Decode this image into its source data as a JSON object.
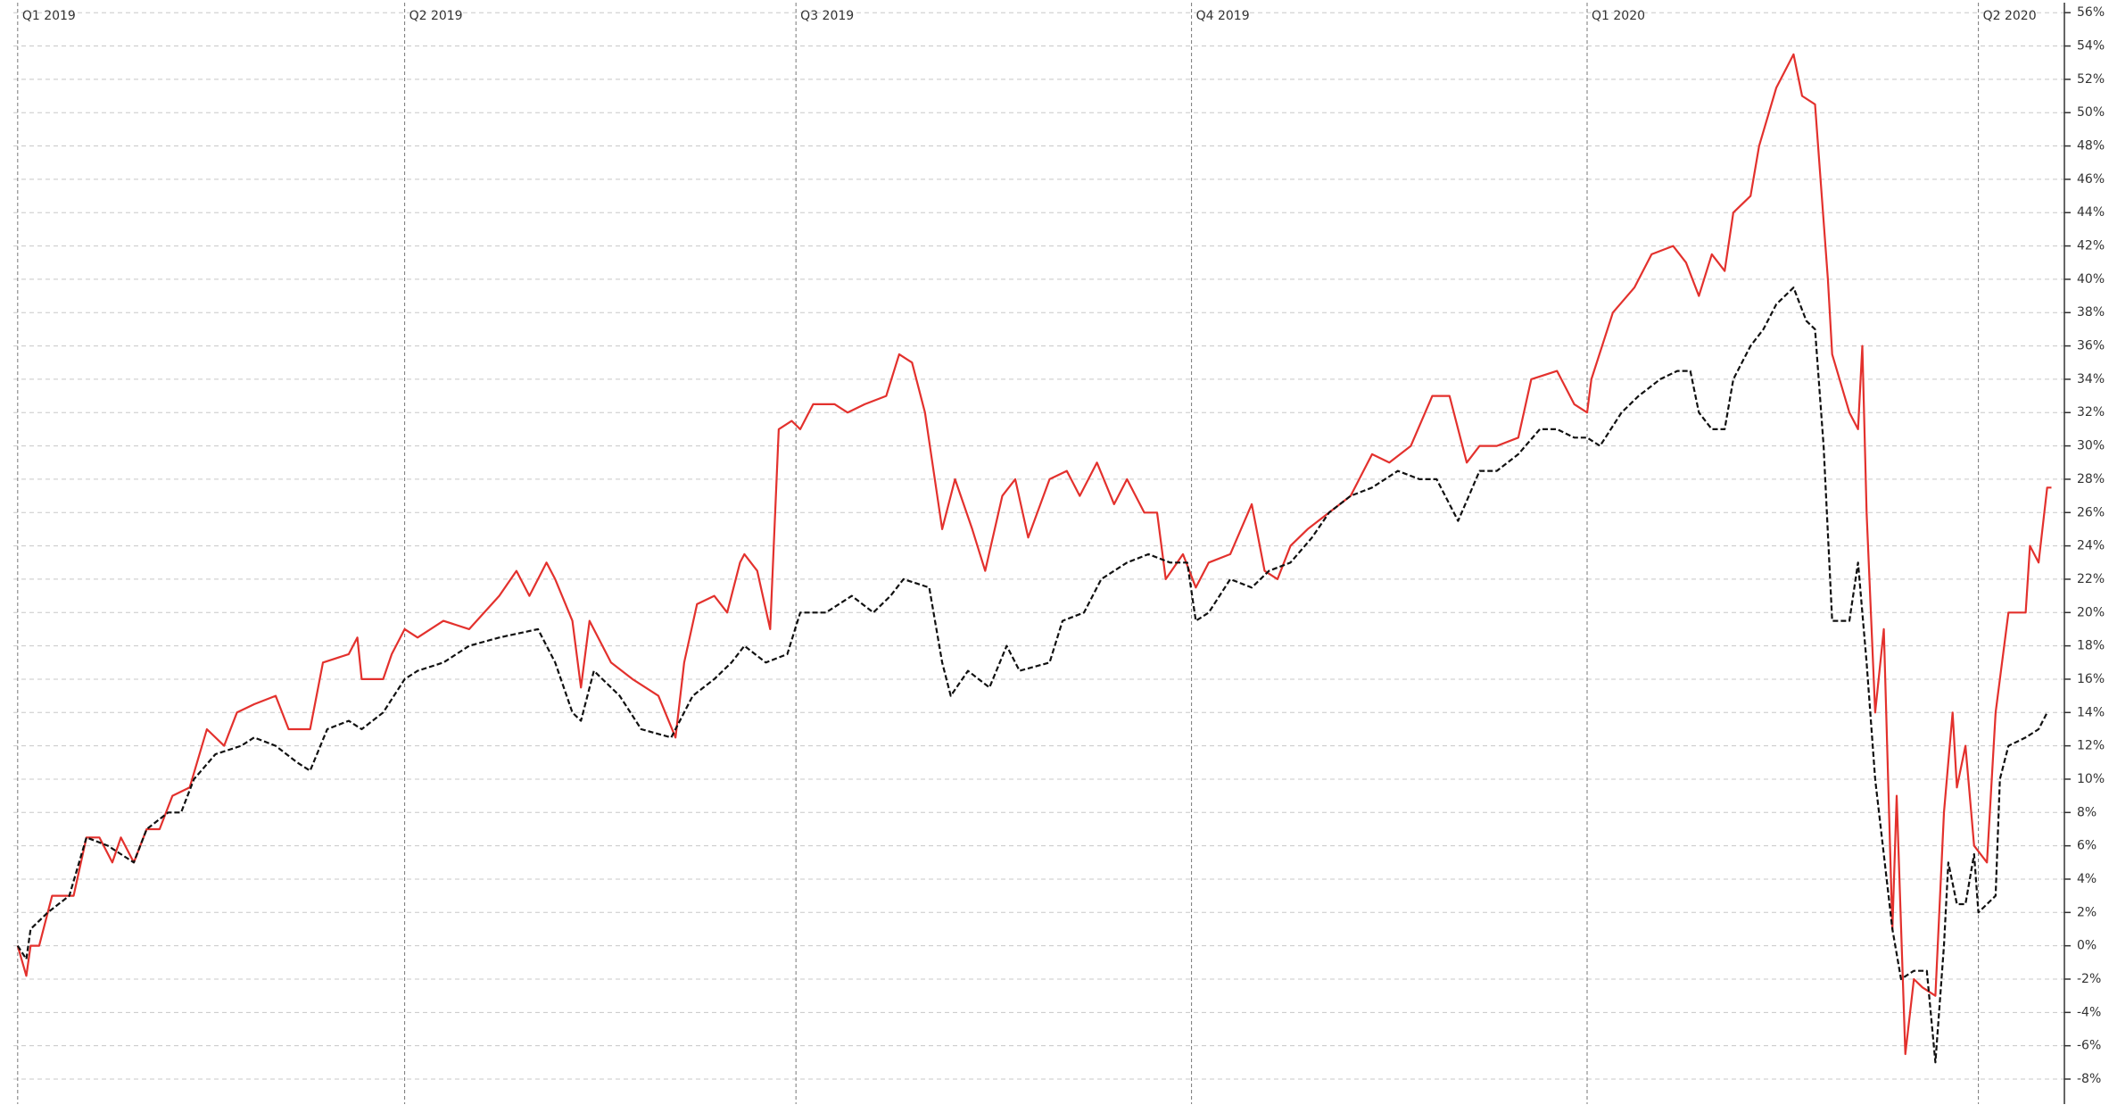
{
  "chart_data": {
    "type": "line",
    "xlim": [
      -1,
      476
    ],
    "xticks": [
      {
        "value": 0,
        "label": "Q1 2019"
      },
      {
        "value": 90,
        "label": "Q2 2019"
      },
      {
        "value": 181,
        "label": "Q3 2019"
      },
      {
        "value": 273,
        "label": "Q4 2019"
      },
      {
        "value": 365,
        "label": "Q1 2020"
      },
      {
        "value": 456,
        "label": "Q2 2020"
      }
    ],
    "ylim": [
      -9.5,
      56.6
    ],
    "yticks": [
      {
        "value": -8,
        "label": "-8%"
      },
      {
        "value": -6,
        "label": "-6%"
      },
      {
        "value": -4,
        "label": "-4%"
      },
      {
        "value": -2,
        "label": "-2%"
      },
      {
        "value": 0,
        "label": "0%"
      },
      {
        "value": 2,
        "label": "2%"
      },
      {
        "value": 4,
        "label": "4%"
      },
      {
        "value": 6,
        "label": "6%"
      },
      {
        "value": 8,
        "label": "8%"
      },
      {
        "value": 10,
        "label": "10%"
      },
      {
        "value": 12,
        "label": "12%"
      },
      {
        "value": 14,
        "label": "14%"
      },
      {
        "value": 16,
        "label": "16%"
      },
      {
        "value": 18,
        "label": "18%"
      },
      {
        "value": 20,
        "label": "20%"
      },
      {
        "value": 22,
        "label": "22%"
      },
      {
        "value": 24,
        "label": "24%"
      },
      {
        "value": 26,
        "label": "26%"
      },
      {
        "value": 28,
        "label": "28%"
      },
      {
        "value": 30,
        "label": "30%"
      },
      {
        "value": 32,
        "label": "32%"
      },
      {
        "value": 34,
        "label": "34%"
      },
      {
        "value": 36,
        "label": "36%"
      },
      {
        "value": 38,
        "label": "38%"
      },
      {
        "value": 40,
        "label": "40%"
      },
      {
        "value": 42,
        "label": "42%"
      },
      {
        "value": 44,
        "label": "44%"
      },
      {
        "value": 46,
        "label": "46%"
      },
      {
        "value": 48,
        "label": "48%"
      },
      {
        "value": 50,
        "label": "50%"
      },
      {
        "value": 52,
        "label": "52%"
      },
      {
        "value": 54,
        "label": "54%"
      },
      {
        "value": 56,
        "label": "56%"
      }
    ],
    "grid": true,
    "series": [
      {
        "color": "#e3312d",
        "dash": false,
        "x": [
          0,
          2,
          3,
          5,
          8,
          13,
          16,
          19,
          22,
          24,
          27,
          30,
          33,
          36,
          40,
          44,
          48,
          51,
          55,
          60,
          63,
          68,
          71,
          77,
          79,
          80,
          85,
          87,
          90,
          93,
          99,
          105,
          112,
          116,
          119,
          123,
          125,
          129,
          131,
          133,
          138,
          143,
          149,
          153,
          155,
          158,
          162,
          165,
          168,
          169,
          172,
          175,
          177,
          180,
          182,
          185,
          190,
          193,
          197,
          202,
          205,
          208,
          211,
          215,
          218,
          222,
          225,
          229,
          232,
          235,
          240,
          244,
          247,
          251,
          255,
          258,
          262,
          265,
          267,
          271,
          274,
          277,
          282,
          287,
          290,
          293,
          296,
          300,
          305,
          310,
          315,
          319,
          324,
          329,
          333,
          337,
          340,
          344,
          349,
          352,
          358,
          362,
          365,
          366,
          371,
          376,
          380,
          385,
          388,
          391,
          394,
          397,
          399,
          403,
          405,
          409,
          413,
          415,
          418,
          421,
          422,
          426,
          428,
          429,
          430,
          432,
          434,
          436,
          437,
          439,
          441,
          443,
          446,
          448,
          450,
          451,
          453,
          455,
          458,
          460,
          463,
          467,
          468,
          470,
          472,
          473
        ],
        "values": [
          0,
          -1.8,
          0,
          0,
          3,
          3,
          6.5,
          6.5,
          5,
          6.5,
          5,
          7,
          7,
          9,
          9.5,
          13,
          12,
          14,
          14.5,
          15,
          13,
          13,
          17,
          17.5,
          18.5,
          16,
          16,
          17.5,
          19,
          18.5,
          19.5,
          19,
          21,
          22.5,
          21,
          23,
          22,
          19.5,
          15.5,
          19.5,
          17,
          16,
          15,
          12.5,
          17,
          20.5,
          21,
          20,
          23,
          23.5,
          22.5,
          19,
          31,
          31.5,
          31,
          32.5,
          32.5,
          32,
          32.5,
          33,
          35.5,
          35,
          32,
          25,
          28,
          25,
          22.5,
          27,
          28,
          24.5,
          28,
          28.5,
          27,
          29,
          26.5,
          28,
          26,
          26,
          22,
          23.5,
          21.5,
          23,
          23.5,
          26.5,
          22.5,
          22,
          24,
          25,
          26,
          27,
          29.5,
          29,
          30,
          33,
          33,
          29,
          30,
          30,
          30.5,
          34,
          34.5,
          32.5,
          32,
          34,
          38,
          39.5,
          41.5,
          42,
          41,
          39,
          41.5,
          40.5,
          44,
          45,
          48,
          51.5,
          53.5,
          51,
          50.5,
          40,
          35.5,
          32,
          31,
          36,
          26,
          14,
          19,
          1,
          9,
          -6.5,
          -2,
          -2.5,
          -3,
          8,
          14,
          9.5,
          12,
          6,
          5,
          14,
          20,
          20,
          24,
          23,
          27.5,
          27.5
        ]
      },
      {
        "color": "#111111",
        "dash": true,
        "x": [
          0,
          2,
          3,
          7,
          12,
          16,
          21,
          24,
          27,
          30,
          35,
          38,
          41,
          46,
          52,
          55,
          60,
          65,
          68,
          72,
          77,
          80,
          85,
          90,
          93,
          99,
          105,
          112,
          121,
          125,
          129,
          131,
          134,
          140,
          145,
          152,
          157,
          162,
          166,
          169,
          174,
          179,
          182,
          188,
          194,
          199,
          203,
          206,
          212,
          215,
          217,
          221,
          226,
          230,
          233,
          240,
          243,
          248,
          252,
          258,
          263,
          268,
          272,
          274,
          277,
          282,
          287,
          291,
          296,
          301,
          305,
          310,
          315,
          321,
          326,
          330,
          335,
          340,
          344,
          349,
          354,
          358,
          362,
          365,
          368,
          373,
          377,
          382,
          386,
          389,
          391,
          394,
          397,
          399,
          403,
          406,
          409,
          413,
          416,
          418,
          420,
          422,
          426,
          428,
          430,
          432,
          436,
          438,
          441,
          444,
          446,
          448,
          449,
          451,
          453,
          455,
          456,
          458,
          460,
          461,
          463,
          467,
          470,
          472
        ],
        "values": [
          0,
          -0.8,
          1,
          2,
          3,
          6.5,
          6,
          5.5,
          5,
          7,
          8,
          8,
          10,
          11.5,
          12,
          12.5,
          12,
          11,
          10.5,
          13,
          13.5,
          13,
          14,
          16,
          16.5,
          17,
          18,
          18.5,
          19,
          17,
          14,
          13.5,
          16.5,
          15,
          13,
          12.5,
          15,
          16,
          17,
          18,
          17,
          17.5,
          20,
          20,
          21,
          20,
          21,
          22,
          21.5,
          17,
          15,
          16.5,
          15.5,
          18,
          16.5,
          17,
          19.5,
          20,
          22,
          23,
          23.5,
          23,
          23,
          19.5,
          20,
          22,
          21.5,
          22.5,
          23,
          24.5,
          26,
          27,
          27.5,
          28.5,
          28,
          28,
          25.5,
          28.5,
          28.5,
          29.5,
          31,
          31,
          30.5,
          30.5,
          30,
          32,
          33,
          34,
          34.5,
          34.5,
          32,
          31,
          31,
          34,
          36,
          37,
          38.5,
          39.5,
          37.5,
          37,
          30,
          19.5,
          19.5,
          23,
          17,
          10,
          1,
          -2,
          -1.5,
          -1.5,
          -7,
          0,
          5,
          2.5,
          2.5,
          5.5,
          2,
          2.5,
          3,
          10,
          12,
          12.5,
          13,
          14
        ]
      }
    ]
  }
}
